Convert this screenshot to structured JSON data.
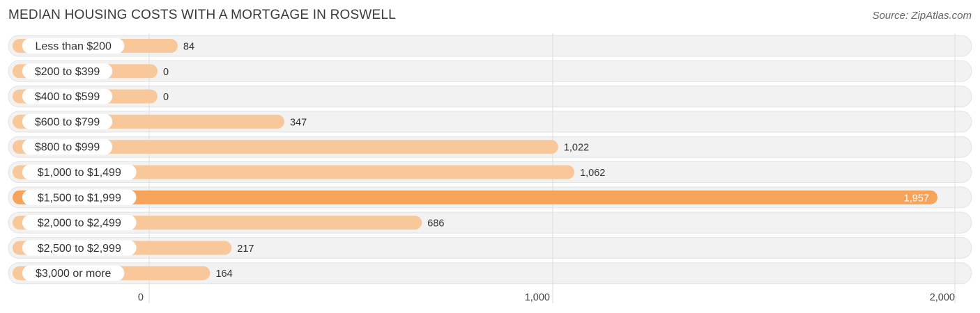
{
  "header": {
    "title": "MEDIAN HOUSING COSTS WITH A MORTGAGE IN ROSWELL",
    "source": "Source: ZipAtlas.com"
  },
  "colors": {
    "bar_normal": "#f9c89a",
    "bar_highlight": "#f7a35a",
    "track": "#f2f2f2",
    "grid": "#dddddd",
    "value_text": "#333333",
    "value_text_inside": "#ffffff"
  },
  "chart_data": {
    "type": "bar",
    "orientation": "horizontal",
    "title": "MEDIAN HOUSING COSTS WITH A MORTGAGE IN ROSWELL",
    "categories": [
      "Less than $200",
      "$200 to $399",
      "$400 to $599",
      "$600 to $799",
      "$800 to $999",
      "$1,000 to $1,499",
      "$1,500 to $1,999",
      "$2,000 to $2,499",
      "$2,500 to $2,999",
      "$3,000 or more"
    ],
    "values": [
      84,
      0,
      0,
      347,
      1022,
      1062,
      1957,
      686,
      217,
      164
    ],
    "value_labels": [
      "84",
      "0",
      "0",
      "347",
      "1,022",
      "1,062",
      "1,957",
      "686",
      "217",
      "164"
    ],
    "highlight_index": 6,
    "xlim": [
      0,
      2000
    ],
    "xticks": [
      0,
      1000,
      2000
    ],
    "xtick_labels": [
      "0",
      "1,000",
      "2,000"
    ],
    "xlabel": "",
    "ylabel": ""
  }
}
